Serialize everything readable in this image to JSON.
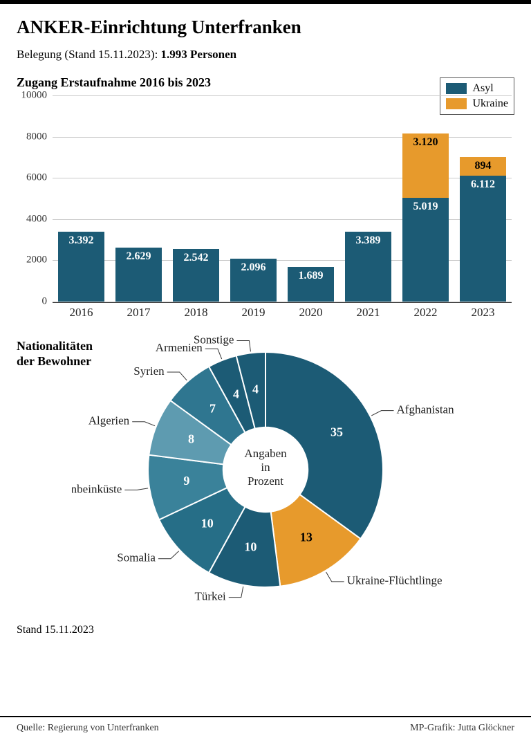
{
  "title": "ANKER-Einrichtung Unterfranken",
  "subline_prefix": "Belegung (Stand 15.11.2023): ",
  "subline_bold": "1.993 Personen",
  "bar_chart": {
    "title": "Zugang Erstaufnahme 2016 bis 2023",
    "type": "stacked-bar",
    "ylim": [
      0,
      10000
    ],
    "ytick_step": 2000,
    "yticks": [
      "0",
      "2000",
      "4000",
      "6000",
      "8000",
      "10000"
    ],
    "categories": [
      "2016",
      "2017",
      "2018",
      "2019",
      "2020",
      "2021",
      "2022",
      "2023"
    ],
    "series": {
      "asyl": {
        "label": "Asyl",
        "color": "#1c5b75",
        "values": [
          3392,
          2629,
          2542,
          2096,
          1689,
          3389,
          5019,
          6112
        ],
        "display": [
          "3.392",
          "2.629",
          "2.542",
          "2.096",
          "1.689",
          "3.389",
          "5.019",
          "6.112"
        ]
      },
      "ukraine": {
        "label": "Ukraine",
        "color": "#e79a2c",
        "values": [
          0,
          0,
          0,
          0,
          0,
          0,
          3120,
          894
        ],
        "display": [
          "",
          "",
          "",
          "",
          "",
          "",
          "3.120",
          "894"
        ]
      }
    },
    "grid_color": "#c9c9c9",
    "background_color": "#ffffff",
    "label_fontsize": 16,
    "axis_fontsize": 15
  },
  "donut": {
    "title": "Nationalitäten\nder Bewohner",
    "center_text": [
      "Angaben",
      "in",
      "Prozent"
    ],
    "inner_ratio": 0.36,
    "outer_radius": 170,
    "slices": [
      {
        "label": "Afghanistan",
        "value": 35,
        "color": "#1c5b75",
        "val_color": "white"
      },
      {
        "label": "Ukraine-Flüchtlinge",
        "value": 13,
        "color": "#e79a2c",
        "val_color": "black"
      },
      {
        "label": "Türkei",
        "value": 10,
        "color": "#1c5b75",
        "val_color": "white"
      },
      {
        "label": "Somalia",
        "value": 10,
        "color": "#266e87",
        "val_color": "white"
      },
      {
        "label": "Elfenbeinküste",
        "value": 9,
        "color": "#3a829a",
        "val_color": "white"
      },
      {
        "label": "Algerien",
        "value": 8,
        "color": "#5e9bb0",
        "val_color": "white"
      },
      {
        "label": "Syrien",
        "value": 7,
        "color": "#2f7690",
        "val_color": "white"
      },
      {
        "label": "Armenien",
        "value": 4,
        "color": "#1c5b75",
        "val_color": "white"
      },
      {
        "label": "Sonstige",
        "value": 4,
        "color": "#1c5b75",
        "val_color": "white"
      }
    ],
    "stand": "Stand 15.11.2023"
  },
  "footer": {
    "source": "Quelle: Regierung von Unterfranken",
    "credit": "MP-Grafik: Jutta Glöckner"
  }
}
